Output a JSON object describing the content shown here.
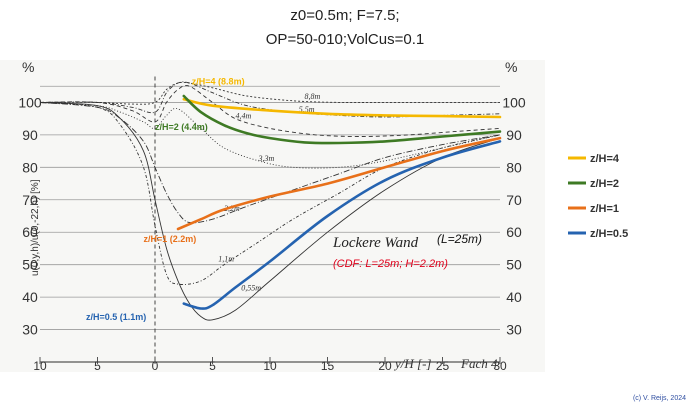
{
  "chart_data": {
    "type": "line",
    "title_lines": [
      "z0=0.5m;  F=7.5;",
      "OP=50-010;VolCus=0.1"
    ],
    "ylabel": "u(0,y,h)/u(0,-22,h) [%]",
    "y_unit_left": "%",
    "y_unit_right": "%",
    "xlabel": "y/H [-]",
    "xlabel_suffix": "Fach 4",
    "xlim": [
      -10,
      30
    ],
    "ylim": [
      20,
      110
    ],
    "x_ticks": [
      {
        "label": "10",
        "value": -10
      },
      {
        "label": "5",
        "value": -5
      },
      {
        "label": "0",
        "value": 0
      },
      {
        "label": "5",
        "value": 5
      },
      {
        "label": "10",
        "value": 10
      },
      {
        "label": "15",
        "value": 15
      },
      {
        "label": "20",
        "value": 20
      },
      {
        "label": "25",
        "value": 25
      },
      {
        "label": "30",
        "value": 30
      }
    ],
    "y_ticks": [
      30,
      40,
      50,
      60,
      70,
      80,
      90,
      100
    ],
    "grid": true,
    "legend_position": "right",
    "series": [
      {
        "name": "z/H=4",
        "color": "#f5b800",
        "x": [
          2.5,
          5,
          10,
          15,
          20,
          25,
          30
        ],
        "y": [
          101,
          99,
          97.5,
          96.5,
          96,
          95.8,
          95.5
        ]
      },
      {
        "name": "z/H=2",
        "color": "#3e7a24",
        "x": [
          2.5,
          4,
          6,
          8,
          10,
          13,
          16,
          20,
          25,
          30
        ],
        "y": [
          102,
          97,
          93,
          90.5,
          89,
          87.7,
          87.5,
          88,
          89.5,
          91
        ]
      },
      {
        "name": "z/H=1",
        "color": "#e8701a",
        "x": [
          2,
          4,
          6,
          10,
          15,
          20,
          25,
          30
        ],
        "y": [
          61,
          64,
          67,
          71,
          75,
          80,
          85,
          89
        ]
      },
      {
        "name": "z/H=0.5",
        "color": "#2563b0",
        "x": [
          2.5,
          4,
          5,
          7,
          10,
          15,
          20,
          25,
          30
        ],
        "y": [
          38,
          36.5,
          37.5,
          43,
          51,
          65,
          76,
          83,
          88
        ]
      }
    ],
    "reference_curves": [
      {
        "name": "8,8m",
        "dash": "2,2",
        "x": [
          -10,
          -5,
          -2,
          0,
          1,
          2,
          3,
          5,
          8,
          12,
          16,
          20,
          25,
          30
        ],
        "y": [
          100,
          100,
          99.5,
          100,
          104,
          106,
          106,
          104.5,
          102,
          100.5,
          100,
          100,
          100,
          100
        ]
      },
      {
        "name": "5,5m",
        "dash": "4,2,1,2",
        "x": [
          -10,
          -5,
          -2,
          0,
          1,
          2,
          3,
          5,
          8,
          12,
          16,
          20,
          25,
          30
        ],
        "y": [
          100,
          100,
          98.5,
          97,
          103,
          106,
          106,
          103,
          99,
          97,
          96,
          95.5,
          96,
          96.5
        ]
      },
      {
        "name": "4,4m",
        "dash": "4,3",
        "x": [
          -10,
          -5,
          -2,
          0,
          1,
          2,
          3,
          5,
          7,
          10,
          14,
          18,
          22,
          26,
          30
        ],
        "y": [
          100,
          100,
          97.5,
          94,
          100,
          104,
          105,
          100,
          95,
          92,
          90,
          89.5,
          90,
          91,
          92
        ]
      },
      {
        "name": "3,3m",
        "dash": "1,2",
        "x": [
          -10,
          -5,
          -3,
          -1,
          0,
          1,
          2,
          4,
          6,
          9,
          12,
          16,
          20,
          25,
          30
        ],
        "y": [
          100,
          99,
          97,
          94,
          92,
          96,
          98,
          92,
          86,
          82,
          80,
          80,
          82,
          86,
          90
        ]
      },
      {
        "name": "2,2m",
        "dash": "6,2,1,2",
        "x": [
          -10,
          -5,
          -3,
          -1,
          0,
          1,
          2,
          3,
          5,
          8,
          12,
          16,
          20,
          25,
          30
        ],
        "y": [
          100,
          98.5,
          95,
          88,
          80,
          72,
          66,
          63,
          64,
          68,
          73,
          78,
          83,
          87,
          90
        ]
      },
      {
        "name": "1,1m",
        "dash": "3,2,1,2",
        "x": [
          -10,
          -5,
          -3,
          -1,
          0,
          1,
          2,
          4,
          6,
          9,
          12,
          16,
          20,
          25,
          30
        ],
        "y": [
          100,
          98.5,
          93,
          80,
          62,
          47,
          44,
          45,
          50,
          57,
          64,
          72,
          80,
          86,
          90
        ]
      },
      {
        "name": "0,55m",
        "dash": "",
        "x": [
          -10,
          -5,
          -3,
          -1,
          0,
          1,
          2,
          3,
          4,
          5,
          7,
          10,
          15,
          20,
          25,
          30
        ],
        "y": [
          100,
          99,
          95,
          85,
          70,
          55,
          45,
          38,
          34,
          33,
          36,
          45,
          60,
          73,
          83,
          89
        ]
      }
    ],
    "curve_labels": [
      {
        "text": "z/H=4  (8.8m)",
        "series": 0
      },
      {
        "text": "z/H=2  (4.4m)",
        "series": 1
      },
      {
        "text": "z/H=1  (2.2m)",
        "series": 2
      },
      {
        "text": "z/H=0.5  (1.1m)",
        "series": 3
      }
    ],
    "annotations": {
      "wall_label": "Lockere Wand",
      "wall_length": "(L=25m)",
      "cdf_note": "(CDF: L=25m; H=2.2m)"
    },
    "copyright": "(c) V. Reijs, 2024"
  }
}
